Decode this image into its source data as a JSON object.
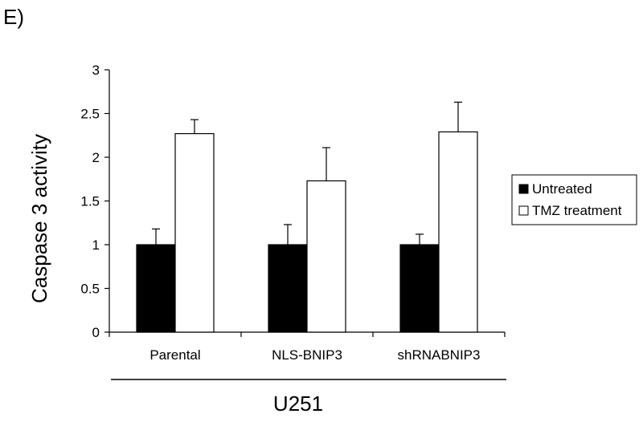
{
  "panel_label": "E)",
  "chart_data": {
    "type": "bar",
    "categories": [
      "Parental",
      "NLS-BNIP3",
      "shRNABNIP3"
    ],
    "series": [
      {
        "name": "Untreated",
        "values": [
          1.0,
          1.0,
          1.0
        ],
        "errors": [
          0.18,
          0.23,
          0.12
        ],
        "color": "#000000"
      },
      {
        "name": "TMZ treatment",
        "values": [
          2.27,
          1.73,
          2.29
        ],
        "errors": [
          0.16,
          0.38,
          0.34
        ],
        "color": "#ffffff"
      }
    ],
    "xlabel": "U251",
    "ylabel": "Caspase 3 activity",
    "ylim": [
      0,
      3
    ],
    "yticks": [
      "0",
      "0.5",
      "1",
      "1.5",
      "2",
      "2.5",
      "3"
    ],
    "legend_position": "right",
    "grid": false
  }
}
